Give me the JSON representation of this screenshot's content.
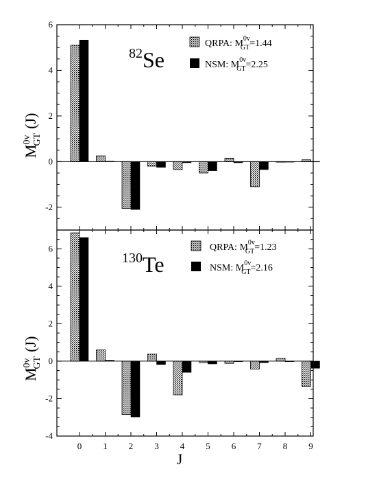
{
  "chart_data": [
    {
      "type": "bar",
      "nucleus": {
        "mass": "82",
        "symbol": "Se"
      },
      "ylabel": {
        "main": "M",
        "sup": "0v",
        "sub": "GT",
        "tail": "(J)"
      },
      "xlabel": "",
      "categories": [
        "0",
        "1",
        "2",
        "3",
        "4",
        "5",
        "6",
        "7",
        "8",
        "9"
      ],
      "ylim": [
        -3,
        6
      ],
      "yticks": [
        -2,
        0,
        2,
        4,
        6
      ],
      "yticklabels": [
        "-2",
        "0",
        "2",
        "4",
        "6"
      ],
      "series": [
        {
          "name": "QRPA",
          "legend_prefix": "QRPA: ",
          "legend_value": "=1.44",
          "style": "dotted",
          "values": [
            5.1,
            0.25,
            -2.05,
            -0.2,
            -0.35,
            -0.5,
            0.15,
            -1.1,
            -0.02,
            0.08
          ]
        },
        {
          "name": "NSM",
          "legend_prefix": "NSM: ",
          "legend_value": "=2.25",
          "style": "solid",
          "values": [
            5.33,
            0.02,
            -2.1,
            -0.25,
            -0.05,
            -0.4,
            -0.05,
            -0.35,
            -0.02,
            0.01
          ]
        }
      ],
      "legend_m": {
        "main": "M",
        "sup": "0v",
        "sub": "GT"
      },
      "legend_placement": "top-right",
      "grid": false
    },
    {
      "type": "bar",
      "nucleus": {
        "mass": "130",
        "symbol": "Te"
      },
      "ylabel": {
        "main": "M",
        "sup": "0v",
        "sub": "GT",
        "tail": "(J)"
      },
      "xlabel": "J",
      "categories": [
        "0",
        "1",
        "2",
        "3",
        "4",
        "5",
        "6",
        "7",
        "8",
        "9"
      ],
      "ylim": [
        -4,
        7
      ],
      "yticks": [
        -4,
        -2,
        0,
        2,
        4,
        6
      ],
      "yticklabels": [
        "-4",
        "-2",
        "0",
        "2",
        "4",
        "6"
      ],
      "series": [
        {
          "name": "QRPA",
          "legend_prefix": "QRPA: ",
          "legend_value": "=1.23",
          "style": "dotted",
          "values": [
            6.85,
            0.6,
            -2.85,
            0.38,
            -1.8,
            -0.08,
            -0.12,
            -0.42,
            0.15,
            -1.35
          ]
        },
        {
          "name": "NSM",
          "legend_prefix": "NSM: ",
          "legend_value": "=2.16",
          "style": "solid",
          "values": [
            6.6,
            0.05,
            -2.98,
            -0.18,
            -0.6,
            -0.15,
            -0.02,
            -0.08,
            0.0,
            -0.38
          ]
        }
      ],
      "legend_m": {
        "main": "M",
        "sup": "0v",
        "sub": "GT"
      },
      "legend_placement": "top-right",
      "grid": false
    }
  ]
}
